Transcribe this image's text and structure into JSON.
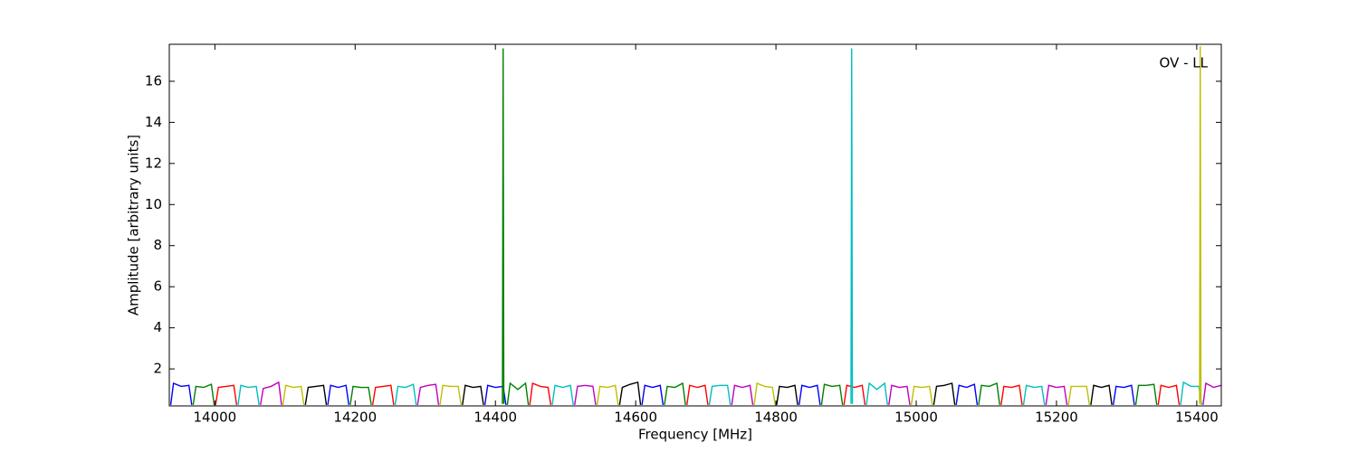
{
  "chart_data": {
    "type": "line",
    "xlabel": "Frequency [MHz]",
    "ylabel": "Amplitude [arbitrary units]",
    "annotation": "OV - LL",
    "xlim": [
      13935,
      15435
    ],
    "ylim": [
      0.2,
      17.8
    ],
    "xticks": [
      14000,
      14200,
      14400,
      14600,
      14800,
      15000,
      15200,
      15400
    ],
    "yticks": [
      2,
      4,
      6,
      8,
      10,
      12,
      14,
      16
    ],
    "series": [
      {
        "color": "#0000ff",
        "x": [
          13937,
          13941,
          13952,
          13963,
          13967
        ],
        "values": [
          0.25,
          1.3,
          1.15,
          1.2,
          0.25
        ]
      },
      {
        "color": "#008000",
        "x": [
          13969,
          13973,
          13984,
          13995,
          13999
        ],
        "values": [
          0.25,
          1.15,
          1.1,
          1.25,
          0.25
        ]
      },
      {
        "color": "#ff0000",
        "x": [
          14001,
          14005,
          14016,
          14027,
          14031
        ],
        "values": [
          0.25,
          1.1,
          1.15,
          1.2,
          0.25
        ]
      },
      {
        "color": "#00bfbf",
        "x": [
          14033,
          14037,
          14048,
          14059,
          14063
        ],
        "values": [
          0.25,
          1.2,
          1.1,
          1.15,
          0.25
        ]
      },
      {
        "color": "#bf00bf",
        "x": [
          14065,
          14069,
          14080,
          14091,
          14095
        ],
        "values": [
          0.25,
          1.05,
          1.15,
          1.35,
          0.25
        ]
      },
      {
        "color": "#bfbf00",
        "x": [
          14097,
          14101,
          14112,
          14123,
          14127
        ],
        "values": [
          0.25,
          1.2,
          1.1,
          1.15,
          0.25
        ]
      },
      {
        "color": "#000000",
        "x": [
          14129,
          14133,
          14144,
          14155,
          14159
        ],
        "values": [
          0.25,
          1.1,
          1.15,
          1.2,
          0.25
        ]
      },
      {
        "color": "#0000ff",
        "x": [
          14161,
          14165,
          14176,
          14187,
          14191
        ],
        "values": [
          0.25,
          1.2,
          1.1,
          1.2,
          0.25
        ]
      },
      {
        "color": "#008000",
        "x": [
          14193,
          14197,
          14208,
          14219,
          14223
        ],
        "values": [
          0.25,
          1.15,
          1.1,
          1.1,
          0.25
        ]
      },
      {
        "color": "#ff0000",
        "x": [
          14225,
          14229,
          14240,
          14251,
          14255
        ],
        "values": [
          0.25,
          1.1,
          1.15,
          1.2,
          0.25
        ]
      },
      {
        "color": "#00bfbf",
        "x": [
          14257,
          14261,
          14272,
          14283,
          14287
        ],
        "values": [
          0.25,
          1.15,
          1.1,
          1.25,
          0.25
        ]
      },
      {
        "color": "#bf00bf",
        "x": [
          14289,
          14293,
          14304,
          14315,
          14319
        ],
        "values": [
          0.25,
          1.1,
          1.2,
          1.25,
          0.25
        ]
      },
      {
        "color": "#bfbf00",
        "x": [
          14321,
          14325,
          14336,
          14347,
          14351
        ],
        "values": [
          0.25,
          1.2,
          1.15,
          1.15,
          0.25
        ]
      },
      {
        "color": "#000000",
        "x": [
          14353,
          14357,
          14368,
          14379,
          14383
        ],
        "values": [
          0.25,
          1.2,
          1.1,
          1.15,
          0.25
        ]
      },
      {
        "color": "#0000ff",
        "x": [
          14385,
          14389,
          14400,
          14411,
          14415
        ],
        "values": [
          0.25,
          1.2,
          1.1,
          1.15,
          0.25
        ]
      },
      {
        "color": "#008000",
        "x": [
          14417,
          14421,
          14432,
          14443,
          14447
        ],
        "values": [
          0.25,
          1.3,
          1.0,
          1.3,
          0.25
        ]
      },
      {
        "color": "#ff0000",
        "x": [
          14449,
          14453,
          14464,
          14475,
          14479
        ],
        "values": [
          0.25,
          1.3,
          1.15,
          1.1,
          0.25
        ]
      },
      {
        "color": "#00bfbf",
        "x": [
          14481,
          14485,
          14496,
          14507,
          14511
        ],
        "values": [
          0.25,
          1.2,
          1.1,
          1.2,
          0.25
        ]
      },
      {
        "color": "#bf00bf",
        "x": [
          14513,
          14517,
          14528,
          14539,
          14543
        ],
        "values": [
          0.25,
          1.15,
          1.2,
          1.15,
          0.25
        ]
      },
      {
        "color": "#bfbf00",
        "x": [
          14545,
          14549,
          14560,
          14571,
          14575
        ],
        "values": [
          0.25,
          1.15,
          1.1,
          1.2,
          0.25
        ]
      },
      {
        "color": "#000000",
        "x": [
          14577,
          14581,
          14592,
          14603,
          14607
        ],
        "values": [
          0.25,
          1.1,
          1.25,
          1.35,
          0.25
        ]
      },
      {
        "color": "#0000ff",
        "x": [
          14609,
          14613,
          14624,
          14635,
          14639
        ],
        "values": [
          0.25,
          1.2,
          1.1,
          1.2,
          0.25
        ]
      },
      {
        "color": "#008000",
        "x": [
          14641,
          14645,
          14656,
          14667,
          14671
        ],
        "values": [
          0.25,
          1.15,
          1.1,
          1.3,
          0.25
        ]
      },
      {
        "color": "#ff0000",
        "x": [
          14673,
          14677,
          14688,
          14699,
          14703
        ],
        "values": [
          0.25,
          1.2,
          1.1,
          1.2,
          0.25
        ]
      },
      {
        "color": "#00bfbf",
        "x": [
          14705,
          14709,
          14720,
          14731,
          14735
        ],
        "values": [
          0.25,
          1.15,
          1.2,
          1.2,
          0.25
        ]
      },
      {
        "color": "#bf00bf",
        "x": [
          14737,
          14741,
          14752,
          14763,
          14767
        ],
        "values": [
          0.25,
          1.2,
          1.1,
          1.2,
          0.25
        ]
      },
      {
        "color": "#bfbf00",
        "x": [
          14769,
          14773,
          14784,
          14795,
          14799
        ],
        "values": [
          0.25,
          1.3,
          1.15,
          1.1,
          0.25
        ]
      },
      {
        "color": "#000000",
        "x": [
          14801,
          14805,
          14816,
          14827,
          14831
        ],
        "values": [
          0.25,
          1.15,
          1.1,
          1.2,
          0.25
        ]
      },
      {
        "color": "#0000ff",
        "x": [
          14833,
          14837,
          14848,
          14859,
          14863
        ],
        "values": [
          0.25,
          1.2,
          1.1,
          1.2,
          0.25
        ]
      },
      {
        "color": "#008000",
        "x": [
          14865,
          14869,
          14880,
          14891,
          14895
        ],
        "values": [
          0.25,
          1.25,
          1.15,
          1.2,
          0.25
        ]
      },
      {
        "color": "#ff0000",
        "x": [
          14897,
          14901,
          14912,
          14923,
          14927
        ],
        "values": [
          0.25,
          1.2,
          1.1,
          1.2,
          0.25
        ]
      },
      {
        "color": "#00bfbf",
        "x": [
          14929,
          14933,
          14944,
          14955,
          14959
        ],
        "values": [
          0.25,
          1.3,
          1.0,
          1.3,
          0.25
        ]
      },
      {
        "color": "#bf00bf",
        "x": [
          14961,
          14965,
          14976,
          14987,
          14991
        ],
        "values": [
          0.25,
          1.2,
          1.1,
          1.15,
          0.25
        ]
      },
      {
        "color": "#bfbf00",
        "x": [
          14993,
          14997,
          15008,
          15019,
          15023
        ],
        "values": [
          0.25,
          1.15,
          1.1,
          1.15,
          0.25
        ]
      },
      {
        "color": "#000000",
        "x": [
          15025,
          15029,
          15040,
          15051,
          15055
        ],
        "values": [
          0.25,
          1.15,
          1.2,
          1.3,
          0.25
        ]
      },
      {
        "color": "#0000ff",
        "x": [
          15057,
          15061,
          15072,
          15083,
          15087
        ],
        "values": [
          0.25,
          1.2,
          1.1,
          1.25,
          0.25
        ]
      },
      {
        "color": "#008000",
        "x": [
          15089,
          15093,
          15104,
          15115,
          15119
        ],
        "values": [
          0.25,
          1.2,
          1.15,
          1.3,
          0.25
        ]
      },
      {
        "color": "#ff0000",
        "x": [
          15121,
          15125,
          15136,
          15147,
          15151
        ],
        "values": [
          0.25,
          1.15,
          1.1,
          1.2,
          0.25
        ]
      },
      {
        "color": "#00bfbf",
        "x": [
          15153,
          15157,
          15168,
          15179,
          15183
        ],
        "values": [
          0.25,
          1.2,
          1.1,
          1.15,
          0.25
        ]
      },
      {
        "color": "#bf00bf",
        "x": [
          15185,
          15189,
          15200,
          15211,
          15215
        ],
        "values": [
          0.25,
          1.2,
          1.1,
          1.15,
          0.25
        ]
      },
      {
        "color": "#bfbf00",
        "x": [
          15217,
          15221,
          15232,
          15243,
          15247
        ],
        "values": [
          0.25,
          1.15,
          1.15,
          1.15,
          0.25
        ]
      },
      {
        "color": "#000000",
        "x": [
          15249,
          15253,
          15264,
          15275,
          15279
        ],
        "values": [
          0.25,
          1.2,
          1.1,
          1.2,
          0.25
        ]
      },
      {
        "color": "#0000ff",
        "x": [
          15281,
          15285,
          15296,
          15307,
          15311
        ],
        "values": [
          0.25,
          1.15,
          1.1,
          1.2,
          0.25
        ]
      },
      {
        "color": "#008000",
        "x": [
          15313,
          15317,
          15328,
          15339,
          15343
        ],
        "values": [
          0.25,
          1.2,
          1.2,
          1.25,
          0.25
        ]
      },
      {
        "color": "#ff0000",
        "x": [
          15345,
          15349,
          15360,
          15371,
          15375
        ],
        "values": [
          0.25,
          1.2,
          1.1,
          1.2,
          0.25
        ]
      },
      {
        "color": "#00bfbf",
        "x": [
          15377,
          15381,
          15392,
          15403,
          15407
        ],
        "values": [
          0.25,
          1.35,
          1.15,
          1.15,
          0.25
        ]
      },
      {
        "color": "#bf00bf",
        "x": [
          15409,
          15413,
          15424,
          15435,
          15439
        ],
        "values": [
          0.25,
          1.3,
          1.1,
          1.2,
          0.25
        ]
      },
      {
        "color": "#008000",
        "x": [
          14410,
          14411,
          14412
        ],
        "values": [
          0.3,
          17.6,
          0.3
        ]
      },
      {
        "color": "#00bfbf",
        "x": [
          14907,
          14908,
          14909
        ],
        "values": [
          0.3,
          17.6,
          0.3
        ]
      },
      {
        "color": "#bfbf00",
        "x": [
          15404,
          15405,
          15406
        ],
        "values": [
          0.3,
          17.7,
          0.3
        ]
      }
    ]
  }
}
